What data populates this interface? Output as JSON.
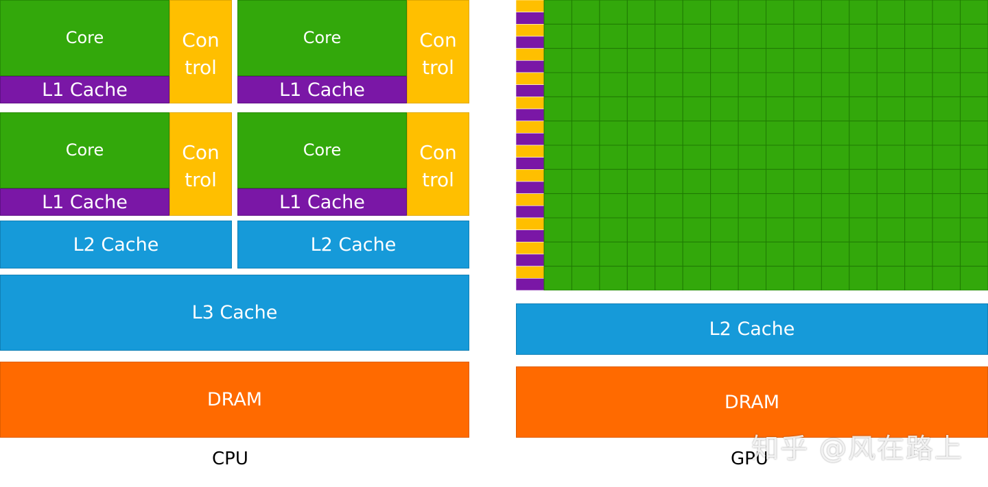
{
  "cpu": {
    "quadrants": [
      {
        "core": "Core",
        "control": [
          "Con",
          "trol"
        ],
        "l1": "L1 Cache"
      },
      {
        "core": "Core",
        "control": [
          "Con",
          "trol"
        ],
        "l1": "L1 Cache"
      },
      {
        "core": "Core",
        "control": [
          "Con",
          "trol"
        ],
        "l1": "L1 Cache"
      },
      {
        "core": "Core",
        "control": [
          "Con",
          "trol"
        ],
        "l1": "L1 Cache"
      }
    ],
    "l2": [
      "L2 Cache",
      "L2 Cache"
    ],
    "l3": "L3 Cache",
    "dram": "DRAM",
    "label": "CPU"
  },
  "gpu": {
    "l2": "L2 Cache",
    "dram": "DRAM",
    "label": "GPU",
    "grid_rows": 12,
    "grid_cols": 16
  },
  "colors": {
    "core": "#33a80b",
    "l1": "#7a17a6",
    "control": "#ffbf00",
    "cache": "#169ad9",
    "dram": "#ff6a00"
  },
  "watermark": "知乎 @风在路上"
}
